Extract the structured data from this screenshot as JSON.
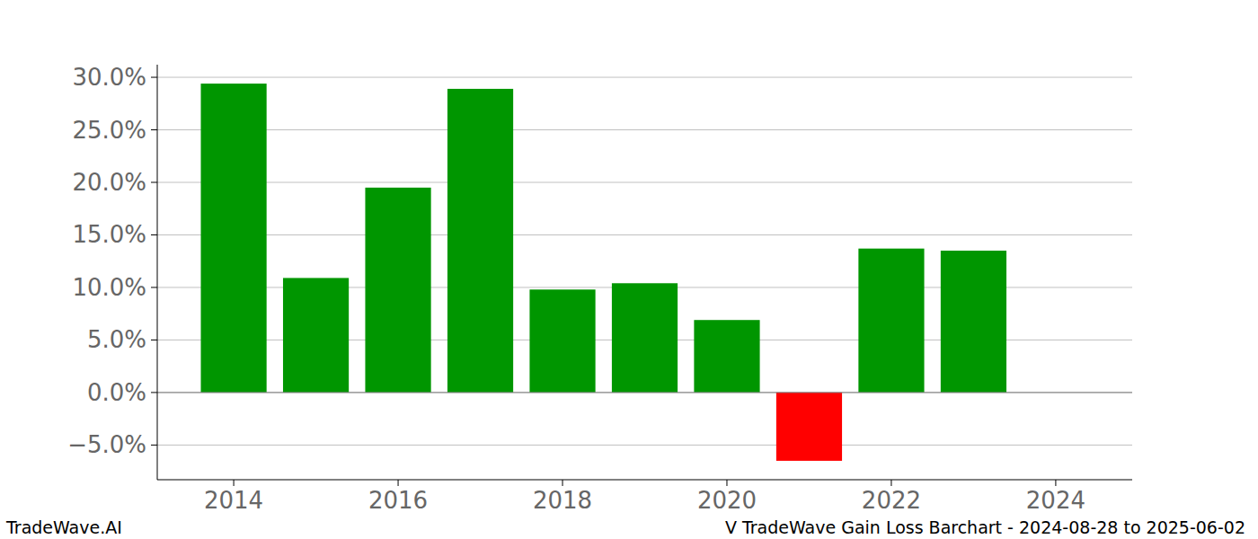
{
  "chart_data": {
    "type": "bar",
    "title": "V TradeWave Gain Loss Barchart - 2024-08-28 to 2025-06-02",
    "annotations": [
      "TradeWave.AI"
    ],
    "x": [
      2014,
      2015,
      2016,
      2017,
      2018,
      2019,
      2020,
      2021,
      2022,
      2023
    ],
    "values": [
      29.4,
      10.9,
      19.5,
      28.9,
      9.8,
      10.4,
      6.9,
      -6.5,
      13.7,
      13.5
    ],
    "colors": [
      "#009600",
      "#009600",
      "#009600",
      "#009600",
      "#009600",
      "#009600",
      "#009600",
      "#ff0000",
      "#009600",
      "#009600"
    ],
    "xlim": [
      2013.07,
      2024.93
    ],
    "xticks": [
      2014,
      2016,
      2018,
      2020,
      2022,
      2024
    ],
    "ylim": [
      -8.3,
      31.2
    ],
    "yticks": [
      {
        "value": -5,
        "label": "−5.0%"
      },
      {
        "value": 0,
        "label": "0.0%"
      },
      {
        "value": 5,
        "label": "5.0%"
      },
      {
        "value": 10,
        "label": "10.0%"
      },
      {
        "value": 15,
        "label": "15.0%"
      },
      {
        "value": 20,
        "label": "20.0%"
      },
      {
        "value": 25,
        "label": "25.0%"
      },
      {
        "value": 30,
        "label": "30.0%"
      }
    ],
    "grid": true
  }
}
